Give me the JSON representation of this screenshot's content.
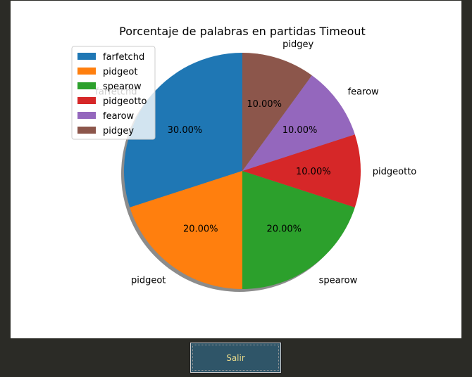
{
  "window": {
    "exit_button_label": "Salir"
  },
  "colors": {
    "background": "#2b2b26",
    "figure": "#ffffff",
    "button_bg": "#2f5568",
    "button_text": "#e6d88a"
  },
  "chart_data": {
    "type": "pie",
    "title": "Porcentaje de palabras en partidas Timeout",
    "slices": [
      {
        "label": "farfetchd",
        "value": 30,
        "pct_label": "30.00%",
        "color": "#1f77b4"
      },
      {
        "label": "pidgeot",
        "value": 20,
        "pct_label": "20.00%",
        "color": "#ff7f0e"
      },
      {
        "label": "spearow",
        "value": 20,
        "pct_label": "20.00%",
        "color": "#2ca02c"
      },
      {
        "label": "pidgeotto",
        "value": 10,
        "pct_label": "10.00%",
        "color": "#d62728"
      },
      {
        "label": "fearow",
        "value": 10,
        "pct_label": "10.00%",
        "color": "#9467bd"
      },
      {
        "label": "pidgey",
        "value": 10,
        "pct_label": "10.00%",
        "color": "#8c564b"
      }
    ],
    "start_angle_deg": 90,
    "direction": "counterclockwise",
    "shadow": true,
    "legend": "upper-left"
  }
}
